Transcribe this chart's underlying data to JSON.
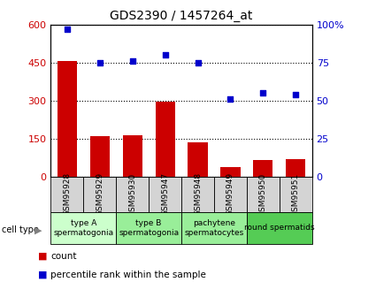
{
  "title": "GDS2390 / 1457264_at",
  "samples": [
    "GSM95928",
    "GSM95929",
    "GSM95930",
    "GSM95947",
    "GSM95948",
    "GSM95949",
    "GSM95950",
    "GSM95951"
  ],
  "counts": [
    455,
    160,
    163,
    295,
    135,
    40,
    65,
    70
  ],
  "percentiles": [
    97,
    75,
    76,
    80,
    75,
    51,
    55,
    54
  ],
  "left_ylim": [
    0,
    600
  ],
  "right_ylim": [
    0,
    100
  ],
  "left_yticks": [
    0,
    150,
    300,
    450,
    600
  ],
  "right_yticks": [
    0,
    25,
    50,
    75,
    100
  ],
  "left_yticklabels": [
    "0",
    "150",
    "300",
    "450",
    "600"
  ],
  "right_yticklabels": [
    "0",
    "25",
    "50",
    "75",
    "100%"
  ],
  "bar_color": "#cc0000",
  "dot_color": "#0000cc",
  "cell_type_colors": [
    "#ccffcc",
    "#99ee99",
    "#99ee99",
    "#55cc55"
  ],
  "cell_type_labels": [
    "type A\nspermatogonia",
    "type B\nspermatogonia",
    "pachytene\nspermatocytes",
    "round spermatids"
  ],
  "cell_type_ranges": [
    [
      0,
      2
    ],
    [
      2,
      4
    ],
    [
      4,
      6
    ],
    [
      6,
      8
    ]
  ],
  "sample_box_color": "#d4d4d4",
  "background_color": "#ffffff"
}
